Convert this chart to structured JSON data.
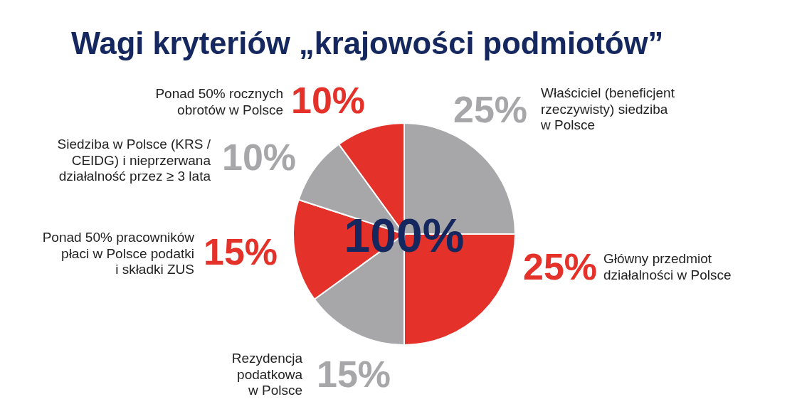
{
  "chart_data": {
    "type": "pie",
    "title": "Wagi kryteriów „krajowości podmiotów”",
    "categories": [
      "Właściciel (beneficjent\nrzeczywisty) siedziba\nw Polsce",
      "Główny przedmiot\ndziałalności w Polsce",
      "Rezydencja\npodatkowa\nw Polsce",
      "Ponad 50% pracowników\npłaci w Polsce podatki\ni składki ZUS",
      "Siedziba w Polsce (KRS /\nCEIDG) i nieprzerwana\ndziałalność przez ≥ 3 lata",
      "Ponad 50% rocznych\nobrotów w Polsce"
    ],
    "values": [
      25,
      25,
      15,
      15,
      10,
      10
    ],
    "colors": [
      "#a7a6a8",
      "#e4322a",
      "#a7a6a8",
      "#e4322a",
      "#a7a6a8",
      "#e4322a"
    ],
    "value_labels": [
      "25%",
      "25%",
      "15%",
      "15%",
      "10%",
      "10%"
    ],
    "annotations": [
      "100%"
    ]
  }
}
